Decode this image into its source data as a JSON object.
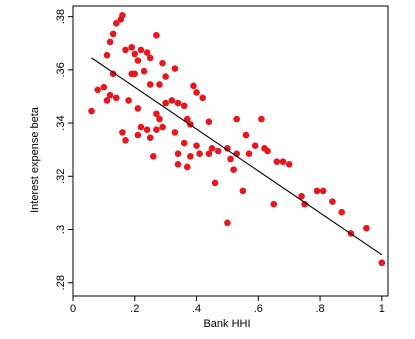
{
  "chart_data": {
    "type": "scatter",
    "title": "",
    "xlabel": "Bank HHI",
    "ylabel": "Interest expense beta",
    "xlim": [
      0,
      1.02
    ],
    "ylim": [
      0.275,
      0.384
    ],
    "x_ticks": [
      0,
      0.2,
      0.4,
      0.6,
      0.8,
      1
    ],
    "x_tick_labels": [
      "0",
      ".2",
      ".4",
      ".6",
      ".8",
      "1"
    ],
    "y_ticks": [
      0.28,
      0.3,
      0.32,
      0.34,
      0.36,
      0.38
    ],
    "y_tick_labels": [
      ".28",
      ".3",
      ".32",
      ".34",
      ".36",
      ".38"
    ],
    "grid": false,
    "marker_color": "#e8161d",
    "fit_line_color": "#000000",
    "fit_line": {
      "x": [
        0.06,
        1.0
      ],
      "y": [
        0.3645,
        0.2905
      ]
    },
    "points": [
      {
        "x": 0.16,
        "y": 0.3805
      },
      {
        "x": 0.155,
        "y": 0.379
      },
      {
        "x": 0.14,
        "y": 0.3775
      },
      {
        "x": 0.13,
        "y": 0.3735
      },
      {
        "x": 0.27,
        "y": 0.373
      },
      {
        "x": 0.12,
        "y": 0.3705
      },
      {
        "x": 0.19,
        "y": 0.3685
      },
      {
        "x": 0.17,
        "y": 0.3675
      },
      {
        "x": 0.22,
        "y": 0.3675
      },
      {
        "x": 0.24,
        "y": 0.3665
      },
      {
        "x": 0.2,
        "y": 0.366
      },
      {
        "x": 0.11,
        "y": 0.3655
      },
      {
        "x": 0.25,
        "y": 0.3645
      },
      {
        "x": 0.21,
        "y": 0.3635
      },
      {
        "x": 0.29,
        "y": 0.3625
      },
      {
        "x": 0.33,
        "y": 0.3605
      },
      {
        "x": 0.23,
        "y": 0.3595
      },
      {
        "x": 0.2,
        "y": 0.3585
      },
      {
        "x": 0.19,
        "y": 0.3585
      },
      {
        "x": 0.13,
        "y": 0.3585
      },
      {
        "x": 0.3,
        "y": 0.3575
      },
      {
        "x": 0.25,
        "y": 0.3545
      },
      {
        "x": 0.28,
        "y": 0.3545
      },
      {
        "x": 0.1,
        "y": 0.3535
      },
      {
        "x": 0.08,
        "y": 0.3525
      },
      {
        "x": 0.39,
        "y": 0.354
      },
      {
        "x": 0.4,
        "y": 0.3515
      },
      {
        "x": 0.12,
        "y": 0.3505
      },
      {
        "x": 0.14,
        "y": 0.3495
      },
      {
        "x": 0.18,
        "y": 0.3485
      },
      {
        "x": 0.11,
        "y": 0.3485
      },
      {
        "x": 0.42,
        "y": 0.3495
      },
      {
        "x": 0.3,
        "y": 0.3475
      },
      {
        "x": 0.32,
        "y": 0.3485
      },
      {
        "x": 0.34,
        "y": 0.3475
      },
      {
        "x": 0.36,
        "y": 0.3465
      },
      {
        "x": 0.21,
        "y": 0.3455
      },
      {
        "x": 0.06,
        "y": 0.3445
      },
      {
        "x": 0.27,
        "y": 0.3435
      },
      {
        "x": 0.28,
        "y": 0.3415
      },
      {
        "x": 0.37,
        "y": 0.3415
      },
      {
        "x": 0.44,
        "y": 0.3405
      },
      {
        "x": 0.38,
        "y": 0.3395
      },
      {
        "x": 0.53,
        "y": 0.3415
      },
      {
        "x": 0.61,
        "y": 0.3415
      },
      {
        "x": 0.22,
        "y": 0.3385
      },
      {
        "x": 0.24,
        "y": 0.3375
      },
      {
        "x": 0.27,
        "y": 0.3375
      },
      {
        "x": 0.29,
        "y": 0.3385
      },
      {
        "x": 0.16,
        "y": 0.3365
      },
      {
        "x": 0.33,
        "y": 0.3365
      },
      {
        "x": 0.21,
        "y": 0.3355
      },
      {
        "x": 0.25,
        "y": 0.3345
      },
      {
        "x": 0.56,
        "y": 0.3355
      },
      {
        "x": 0.17,
        "y": 0.3335
      },
      {
        "x": 0.36,
        "y": 0.3325
      },
      {
        "x": 0.4,
        "y": 0.3315
      },
      {
        "x": 0.59,
        "y": 0.3315
      },
      {
        "x": 0.45,
        "y": 0.3305
      },
      {
        "x": 0.5,
        "y": 0.3305
      },
      {
        "x": 0.62,
        "y": 0.3305
      },
      {
        "x": 0.63,
        "y": 0.3295
      },
      {
        "x": 0.47,
        "y": 0.3295
      },
      {
        "x": 0.34,
        "y": 0.3285
      },
      {
        "x": 0.41,
        "y": 0.3285
      },
      {
        "x": 0.44,
        "y": 0.3285
      },
      {
        "x": 0.53,
        "y": 0.3285
      },
      {
        "x": 0.57,
        "y": 0.3285
      },
      {
        "x": 0.26,
        "y": 0.3275
      },
      {
        "x": 0.38,
        "y": 0.3275
      },
      {
        "x": 0.51,
        "y": 0.3265
      },
      {
        "x": 0.66,
        "y": 0.3255
      },
      {
        "x": 0.68,
        "y": 0.3255
      },
      {
        "x": 0.7,
        "y": 0.3245
      },
      {
        "x": 0.34,
        "y": 0.3245
      },
      {
        "x": 0.37,
        "y": 0.3235
      },
      {
        "x": 0.52,
        "y": 0.3225
      },
      {
        "x": 0.46,
        "y": 0.3175
      },
      {
        "x": 0.55,
        "y": 0.3145
      },
      {
        "x": 0.79,
        "y": 0.3145
      },
      {
        "x": 0.81,
        "y": 0.3145
      },
      {
        "x": 0.74,
        "y": 0.3125
      },
      {
        "x": 0.84,
        "y": 0.3105
      },
      {
        "x": 0.75,
        "y": 0.3095
      },
      {
        "x": 0.65,
        "y": 0.3095
      },
      {
        "x": 0.87,
        "y": 0.3065
      },
      {
        "x": 0.5,
        "y": 0.3025
      },
      {
        "x": 0.95,
        "y": 0.3005
      },
      {
        "x": 0.9,
        "y": 0.2985
      },
      {
        "x": 1.0,
        "y": 0.2875
      }
    ]
  }
}
